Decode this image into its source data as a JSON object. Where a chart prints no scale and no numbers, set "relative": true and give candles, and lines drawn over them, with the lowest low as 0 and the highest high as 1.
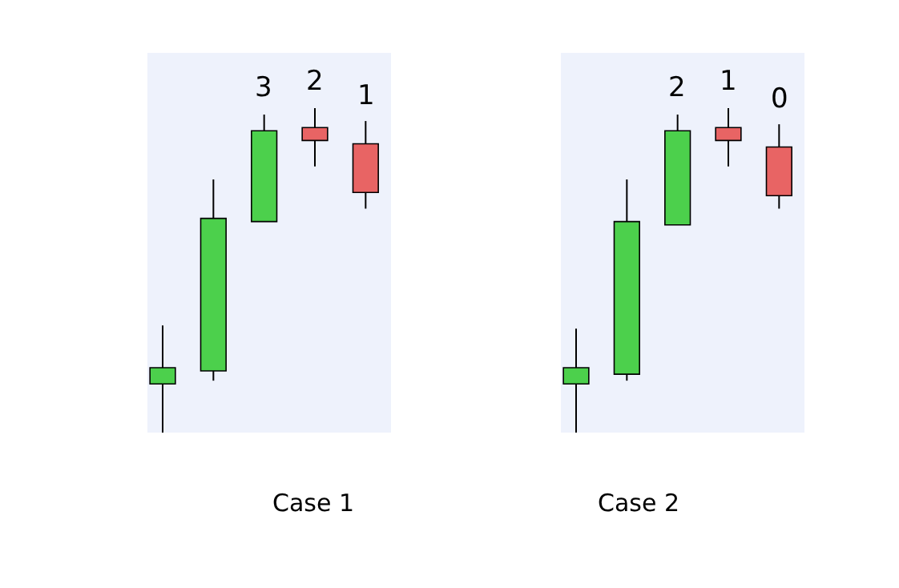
{
  "chart_data": [
    {
      "type": "candlestick",
      "relative": true,
      "xlabel": "Case 1",
      "categories": [
        null,
        null,
        null,
        null,
        null
      ],
      "ohlc": [
        [
          0.15,
          0.33,
          0,
          0.2
        ],
        [
          0.19,
          0.78,
          0.16,
          0.66
        ],
        [
          0.65,
          0.98,
          0.65,
          0.93
        ],
        [
          0.94,
          1,
          0.82,
          0.9
        ],
        [
          0.89,
          0.96,
          0.69,
          0.74
        ]
      ],
      "colors": [
        "#4cd04c",
        "#4cd04c",
        "#4cd04c",
        "#e86464",
        "#e86464"
      ],
      "value_labels": [
        null,
        null,
        "3",
        "2",
        "1"
      ],
      "grid": false,
      "legend": false,
      "tick_labels": false
    },
    {
      "type": "candlestick",
      "relative": true,
      "xlabel": "Case 2",
      "categories": [
        null,
        null,
        null,
        null,
        null
      ],
      "ohlc": [
        [
          0.15,
          0.32,
          0,
          0.2
        ],
        [
          0.18,
          0.78,
          0.16,
          0.65
        ],
        [
          0.64,
          0.98,
          0.64,
          0.93
        ],
        [
          0.94,
          1,
          0.82,
          0.9
        ],
        [
          0.88,
          0.95,
          0.69,
          0.73
        ]
      ],
      "colors": [
        "#4cd04c",
        "#4cd04c",
        "#4cd04c",
        "#e86464",
        "#e86464"
      ],
      "value_labels": [
        null,
        null,
        "2",
        "1",
        "0"
      ],
      "grid": false,
      "legend": false,
      "tick_labels": false
    }
  ]
}
